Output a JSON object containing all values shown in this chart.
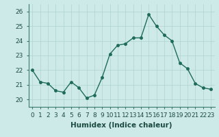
{
  "x": [
    0,
    1,
    2,
    3,
    4,
    5,
    6,
    7,
    8,
    9,
    10,
    11,
    12,
    13,
    14,
    15,
    16,
    17,
    18,
    19,
    20,
    21,
    22,
    23
  ],
  "y": [
    22.0,
    21.2,
    21.1,
    20.6,
    20.5,
    21.2,
    20.8,
    20.1,
    20.3,
    21.5,
    23.1,
    23.7,
    23.8,
    24.2,
    24.2,
    25.8,
    25.0,
    24.4,
    24.0,
    22.5,
    22.1,
    21.1,
    20.8,
    20.7
  ],
  "line_color": "#1e6b5a",
  "marker": "o",
  "markersize": 2.5,
  "linewidth": 1.0,
  "bg_color": "#ceeae8",
  "grid_color": "#aed4d0",
  "xlabel": "Humidex (Indice chaleur)",
  "ylim": [
    19.5,
    26.5
  ],
  "xlim": [
    -0.5,
    23.5
  ],
  "yticks": [
    20,
    21,
    22,
    23,
    24,
    25,
    26
  ],
  "xtick_labels": [
    "0",
    "1",
    "2",
    "3",
    "4",
    "5",
    "6",
    "7",
    "8",
    "9",
    "10",
    "11",
    "12",
    "13",
    "14",
    "15",
    "16",
    "17",
    "18",
    "19",
    "20",
    "21",
    "22",
    "23"
  ],
  "xlabel_fontsize": 7.5,
  "tick_fontsize": 6.5
}
